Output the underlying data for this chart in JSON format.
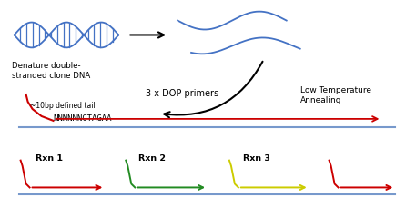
{
  "bg_color": "#ffffff",
  "dna_color": "#4472c4",
  "red_color": "#cc0000",
  "green_color": "#228B22",
  "yellow_color": "#cccc00",
  "blue_line_color": "#7799cc",
  "title_text": "Denature double-\nstranded clone DNA",
  "dop_text": "3 x DOP primers",
  "low_temp_text": "Low Temperature\nAnnealing",
  "tail_text": "~10bp defined tail",
  "seq_text": "NNNNNNCTAGAA",
  "rxn1_text": "Rxn 1",
  "rxn2_text": "Rxn 2",
  "rxn3_text": "Rxn 3",
  "figw": 4.57,
  "figh": 2.29,
  "dpi": 100
}
